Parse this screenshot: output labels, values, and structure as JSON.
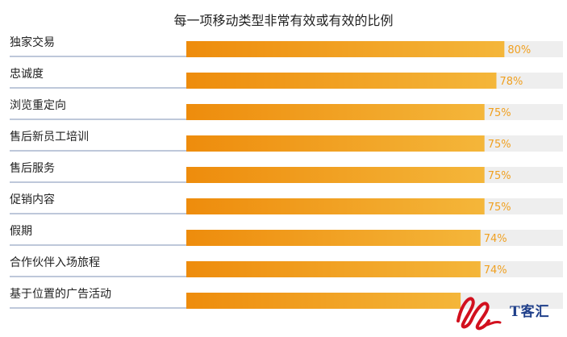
{
  "chart_data": {
    "type": "bar",
    "orientation": "horizontal",
    "title": "每一项移动类型非常有效或有效的比例",
    "categories": [
      "独家交易",
      "忠诚度",
      "浏览重定向",
      "售后新员工培训",
      "售后服务",
      "促销内容",
      "假期",
      "合作伙伴入场旅程",
      "基于位置的广告活动"
    ],
    "values": [
      80,
      78,
      75,
      75,
      75,
      75,
      74,
      74,
      69
    ],
    "value_labels": [
      "80%",
      "78%",
      "75%",
      "75%",
      "75%",
      "75%",
      "74%",
      "74%",
      ""
    ],
    "xlim": [
      0,
      100
    ],
    "unit": "%",
    "grid": false,
    "colors": {
      "bar_start": "#ee8c0c",
      "bar_end": "#f4b63a",
      "track": "#eeeeee",
      "value_text": "#f0a020",
      "row_line": "#7c91b4"
    }
  },
  "watermark": {
    "text": "T客汇"
  }
}
